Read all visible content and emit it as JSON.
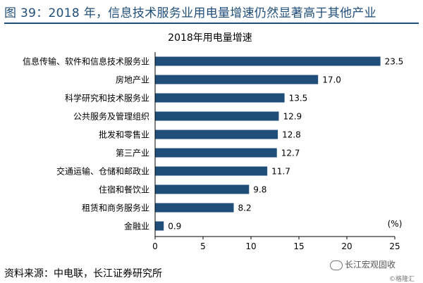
{
  "header": {
    "figure_title": "图 39：2018 年，信息技术服务业用电量增速仍然显著高于其他产业"
  },
  "footer": {
    "source": "资料来源：中电联，长江证券研究所"
  },
  "watermark": {
    "text": "长江宏观固收",
    "small": "©格隆汇"
  },
  "colors": {
    "bar": "#1f4e79",
    "title": "#1f4e79"
  },
  "chart_data": {
    "type": "bar",
    "orientation": "horizontal",
    "title": "2018年用电量增速",
    "unit_label": "(%)",
    "categories": [
      "信息传输、软件和信息技术服务业",
      "房地产业",
      "科学研究和技术服务业",
      "公共服务及管理组织",
      "批发和零售业",
      "第三产业",
      "交通运输、仓储和邮政业",
      "住宿和餐饮业",
      "租赁和商务服务业",
      "金融业"
    ],
    "values": [
      23.5,
      17.0,
      13.5,
      12.9,
      12.8,
      12.7,
      11.7,
      9.8,
      8.2,
      0.9
    ],
    "value_labels": [
      "23.5",
      "17.0",
      "13.5",
      "12.9",
      "12.8",
      "12.7",
      "11.7",
      "9.8",
      "8.2",
      "0.9"
    ],
    "xlim": [
      0,
      25
    ],
    "xticks": [
      "0",
      "5",
      "10",
      "15",
      "20",
      "25"
    ],
    "grid": false,
    "legend": "none"
  }
}
